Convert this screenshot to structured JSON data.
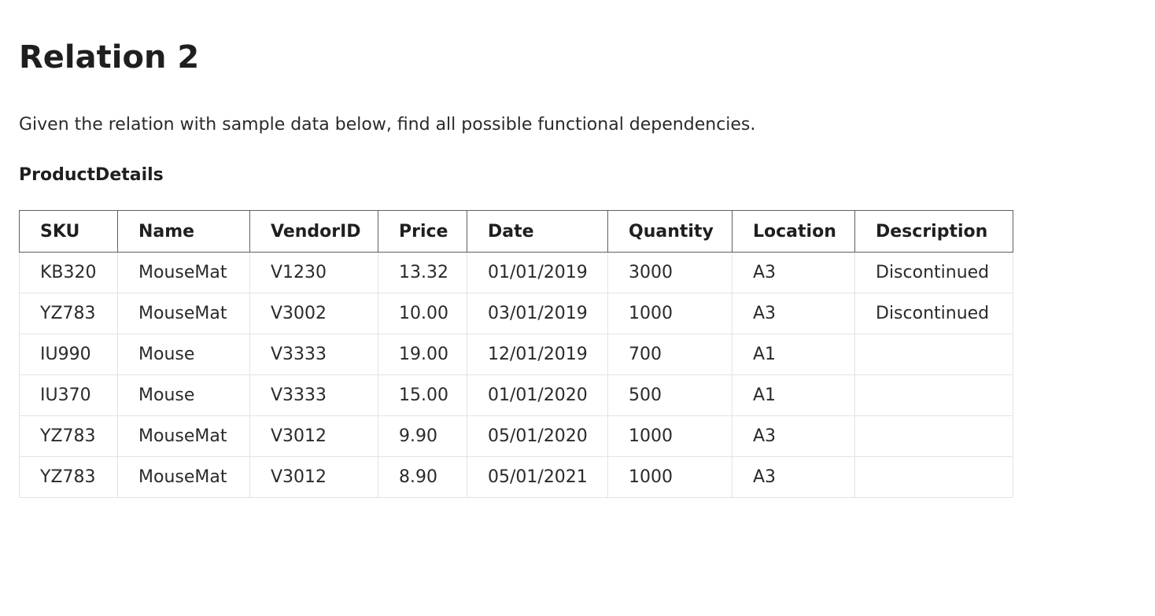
{
  "page": {
    "title": "Relation 2",
    "intro": "Given the relation with sample data below, find all possible functional dependencies."
  },
  "table": {
    "name": "ProductDetails",
    "columns": [
      "SKU",
      "Name",
      "VendorID",
      "Price",
      "Date",
      "Quantity",
      "Location",
      "Description"
    ],
    "rows": [
      [
        "KB320",
        "MouseMat",
        "V1230",
        "13.32",
        "01/01/2019",
        "3000",
        "A3",
        "Discontinued"
      ],
      [
        "YZ783",
        "MouseMat",
        "V3002",
        "10.00",
        "03/01/2019",
        "1000",
        "A3",
        "Discontinued"
      ],
      [
        "IU990",
        "Mouse",
        "V3333",
        "19.00",
        "12/01/2019",
        "700",
        "A1",
        ""
      ],
      [
        "IU370",
        "Mouse",
        "V3333",
        "15.00",
        "01/01/2020",
        "500",
        "A1",
        ""
      ],
      [
        "YZ783",
        "MouseMat",
        "V3012",
        "9.90",
        "05/01/2020",
        "1000",
        "A3",
        ""
      ],
      [
        "YZ783",
        "MouseMat",
        "V3012",
        "8.90",
        "05/01/2021",
        "1000",
        "A3",
        ""
      ]
    ]
  }
}
